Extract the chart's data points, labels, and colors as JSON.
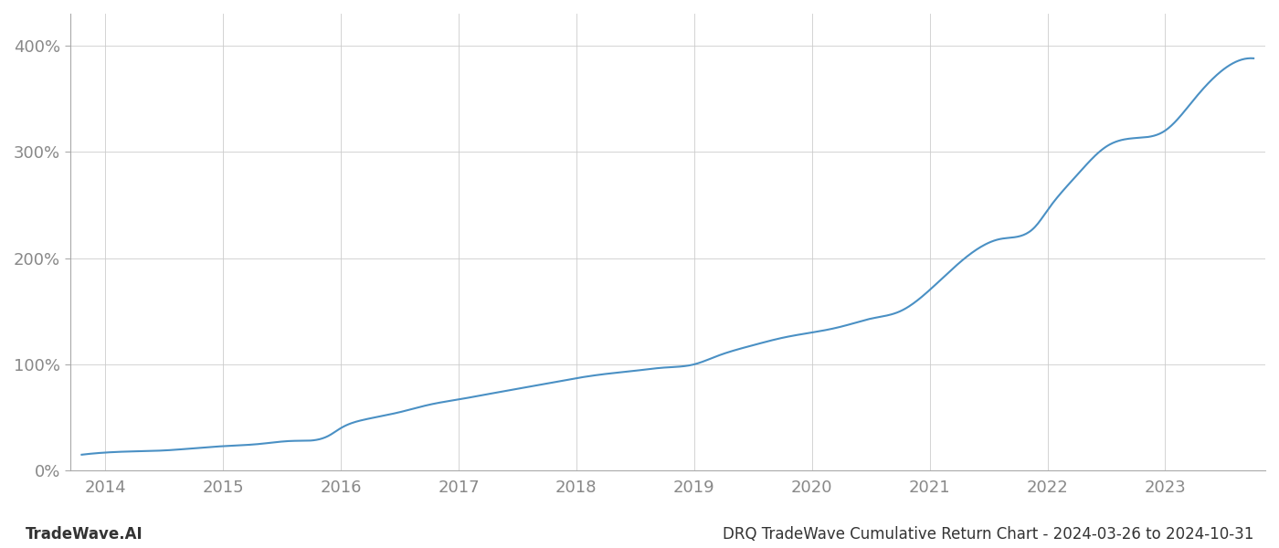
{
  "title": "DRQ TradeWave Cumulative Return Chart - 2024-03-26 to 2024-10-31",
  "watermark": "TradeWave.AI",
  "line_color": "#4a90c4",
  "background_color": "#ffffff",
  "grid_color": "#cccccc",
  "x_years": [
    2014,
    2015,
    2016,
    2017,
    2018,
    2019,
    2020,
    2021,
    2022,
    2023
  ],
  "y_ticks": [
    0,
    100,
    200,
    300,
    400
  ],
  "ylim": [
    0,
    430
  ],
  "xlim": [
    2013.7,
    2023.85
  ],
  "data_x": [
    2013.8,
    2014.0,
    2014.2,
    2014.5,
    2014.75,
    2015.0,
    2015.3,
    2015.6,
    2015.9,
    2016.0,
    2016.2,
    2016.5,
    2016.75,
    2017.0,
    2017.25,
    2017.5,
    2017.75,
    2018.0,
    2018.25,
    2018.5,
    2018.75,
    2019.0,
    2019.2,
    2019.5,
    2019.75,
    2020.0,
    2020.15,
    2020.3,
    2020.5,
    2020.75,
    2021.0,
    2021.3,
    2021.6,
    2021.9,
    2022.0,
    2022.25,
    2022.5,
    2022.75,
    2023.0,
    2023.25,
    2023.5,
    2023.75
  ],
  "data_y": [
    15,
    17,
    18,
    19,
    21,
    23,
    25,
    28,
    33,
    40,
    48,
    55,
    62,
    67,
    72,
    77,
    82,
    87,
    91,
    94,
    97,
    100,
    108,
    118,
    125,
    130,
    133,
    137,
    143,
    150,
    170,
    200,
    218,
    230,
    245,
    278,
    305,
    313,
    320,
    350,
    378,
    388
  ]
}
